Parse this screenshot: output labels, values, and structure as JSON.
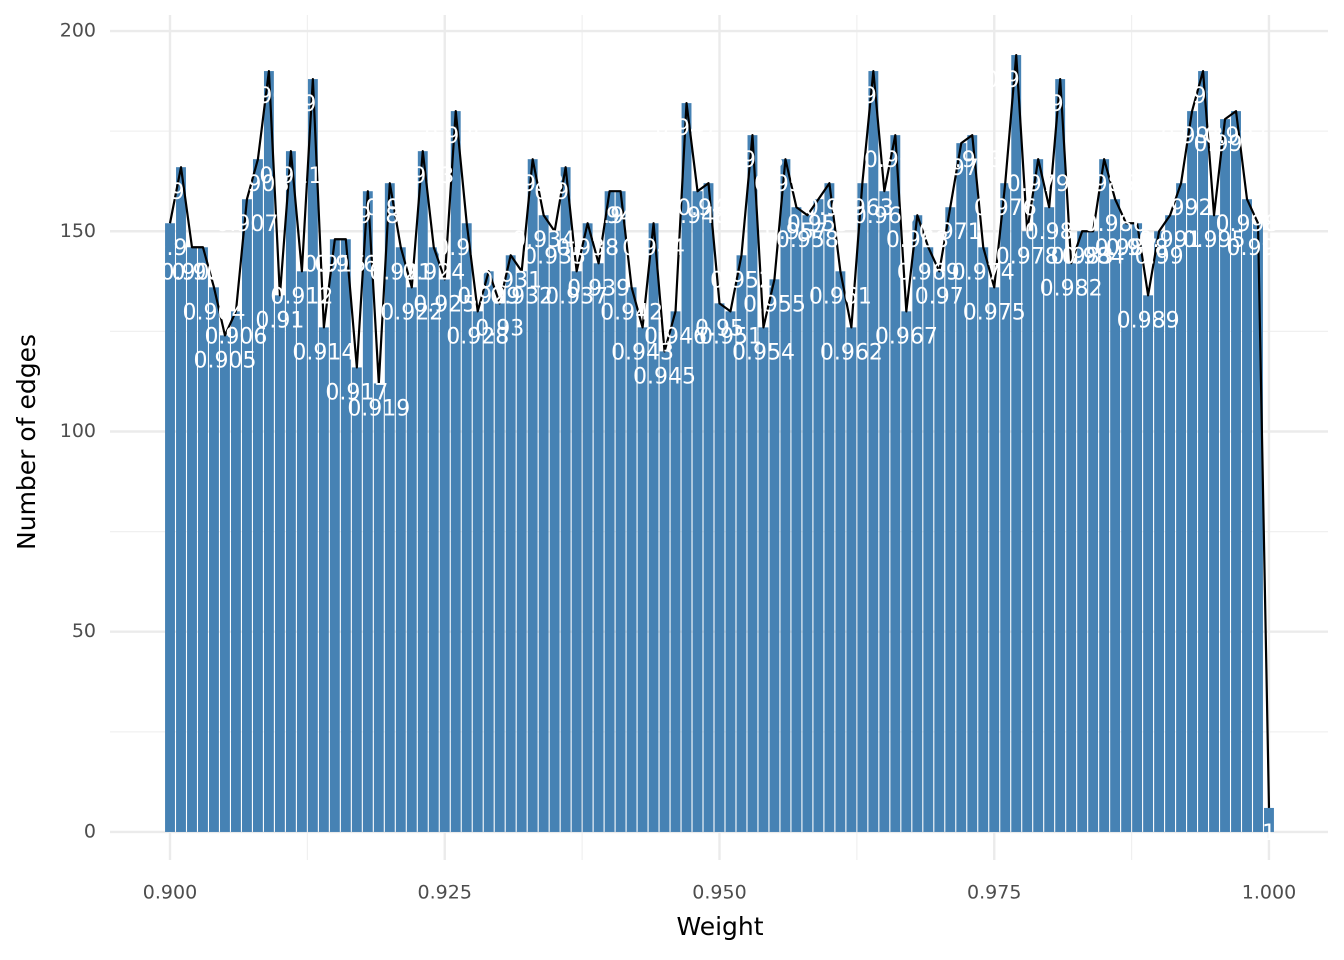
{
  "chart_data": {
    "type": "bar",
    "x_label": "Weight",
    "y_label": "Number of edges",
    "x": [
      0.9,
      0.901,
      0.902,
      0.903,
      0.904,
      0.905,
      0.906,
      0.907,
      0.908,
      0.909,
      0.91,
      0.911,
      0.912,
      0.913,
      0.914,
      0.915,
      0.916,
      0.917,
      0.918,
      0.919,
      0.92,
      0.921,
      0.922,
      0.923,
      0.924,
      0.925,
      0.926,
      0.927,
      0.928,
      0.929,
      0.93,
      0.931,
      0.932,
      0.933,
      0.934,
      0.935,
      0.936,
      0.937,
      0.938,
      0.939,
      0.94,
      0.941,
      0.942,
      0.943,
      0.944,
      0.945,
      0.946,
      0.947,
      0.948,
      0.949,
      0.95,
      0.951,
      0.952,
      0.953,
      0.954,
      0.955,
      0.956,
      0.957,
      0.958,
      0.959,
      0.96,
      0.961,
      0.962,
      0.963,
      0.964,
      0.965,
      0.966,
      0.967,
      0.968,
      0.969,
      0.97,
      0.971,
      0.972,
      0.973,
      0.974,
      0.975,
      0.976,
      0.977,
      0.978,
      0.979,
      0.98,
      0.981,
      0.982,
      0.983,
      0.984,
      0.985,
      0.986,
      0.987,
      0.988,
      0.989,
      0.99,
      0.991,
      0.992,
      0.993,
      0.994,
      0.995,
      0.996,
      0.997,
      0.998,
      0.999,
      1
    ],
    "values": [
      152,
      166,
      146,
      146,
      136,
      124,
      130,
      158,
      168,
      190,
      134,
      170,
      140,
      188,
      126,
      148,
      148,
      116,
      160,
      112,
      162,
      146,
      136,
      170,
      146,
      138,
      180,
      152,
      130,
      140,
      132,
      144,
      140,
      168,
      154,
      150,
      166,
      140,
      152,
      142,
      160,
      160,
      136,
      126,
      152,
      120,
      130,
      182,
      160,
      162,
      132,
      130,
      144,
      174,
      126,
      138,
      168,
      156,
      154,
      158,
      162,
      140,
      126,
      162,
      190,
      160,
      174,
      130,
      154,
      146,
      140,
      156,
      172,
      174,
      146,
      136,
      162,
      194,
      150,
      168,
      156,
      188,
      142,
      150,
      150,
      168,
      158,
      152,
      152,
      134,
      150,
      154,
      162,
      180,
      190,
      154,
      178,
      180,
      158,
      152,
      6
    ],
    "point_labels": [
      "0.9",
      "0.901",
      "0.902",
      "0.903",
      "0.904",
      "0.905",
      "0.906",
      "0.907",
      "0.908",
      "0.909",
      "0.91",
      "0.911",
      "0.912",
      "0.913",
      "0.914",
      "0.915",
      "0.916",
      "0.917",
      "0.918",
      "0.919",
      "0.92",
      "0.921",
      "0.922",
      "0.923",
      "0.924",
      "0.925",
      "0.926",
      "0.927",
      "0.928",
      "0.929",
      "0.93",
      "0.931",
      "0.932",
      "0.933",
      "0.934",
      "0.935",
      "0.936",
      "0.937",
      "0.938",
      "0.939",
      "0.94",
      "0.941",
      "0.942",
      "0.943",
      "0.944",
      "0.945",
      "0.946",
      "0.947",
      "0.948",
      "0.949",
      "0.95",
      "0.951",
      "0.952",
      "0.953",
      "0.954",
      "0.955",
      "0.956",
      "0.957",
      "0.958",
      "0.959",
      "0.96",
      "0.961",
      "0.962",
      "0.963",
      "0.964",
      "0.965",
      "0.966",
      "0.967",
      "0.968",
      "0.969",
      "0.97",
      "0.971",
      "0.972",
      "0.973",
      "0.974",
      "0.975",
      "0.976",
      "0.977",
      "0.978",
      "0.979",
      "0.98",
      "0.981",
      "0.982",
      "0.983",
      "0.984",
      "0.985",
      "0.986",
      "0.987",
      "0.988",
      "0.989",
      "0.99",
      "0.991",
      "0.992",
      "0.993",
      "0.994",
      "0.995",
      "0.996",
      "0.997",
      "0.998",
      "0.999",
      "1"
    ],
    "color": "#4682b4",
    "line_color": "#000000",
    "xlim": [
      0.89454,
      1.00537
    ],
    "ylim": [
      -7,
      204
    ],
    "xticks": [
      {
        "value": 0.9,
        "label": "0.900"
      },
      {
        "value": 0.925,
        "label": "0.925"
      },
      {
        "value": 0.95,
        "label": "0.950"
      },
      {
        "value": 0.975,
        "label": "0.975"
      },
      {
        "value": 1,
        "label": "1.000"
      }
    ],
    "yticks": [
      0,
      50,
      100,
      150,
      200
    ],
    "grid": true
  }
}
